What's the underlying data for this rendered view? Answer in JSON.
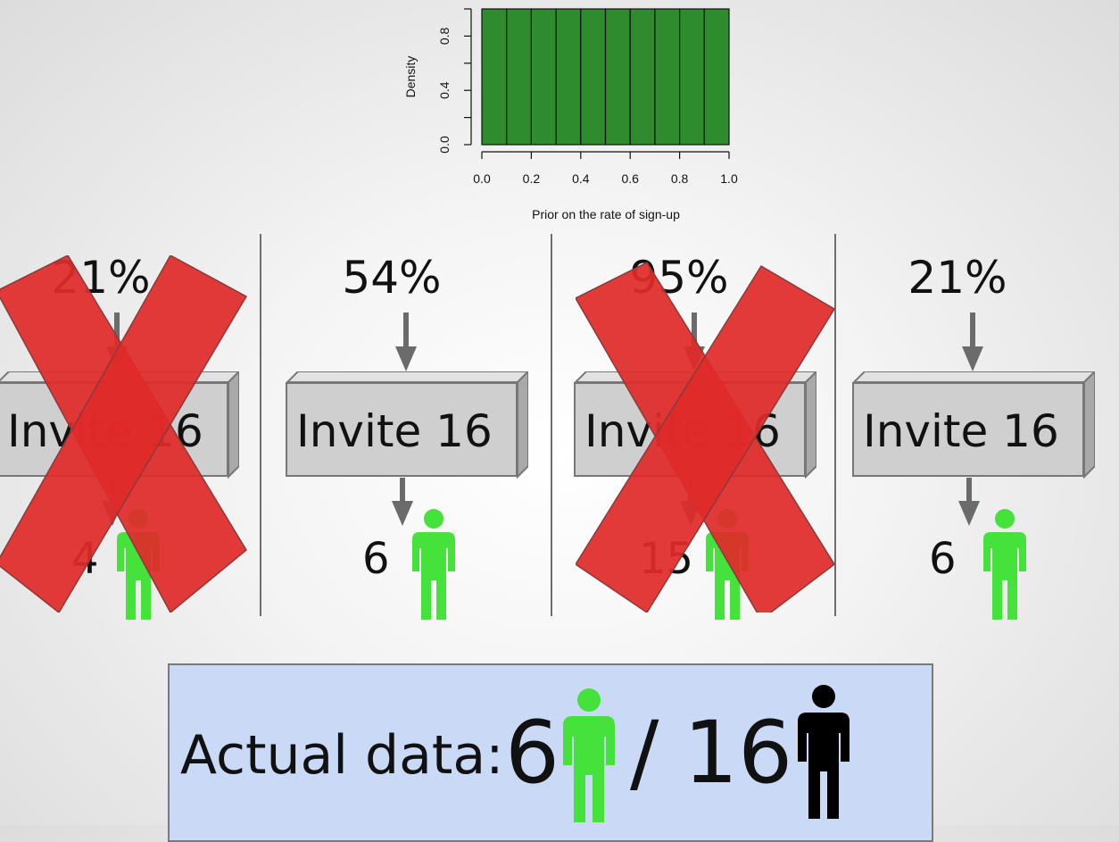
{
  "chart_data": {
    "type": "bar",
    "title": "",
    "xlabel": "Prior on the rate of sign-up",
    "ylabel": "Density",
    "x_bin_edges": [
      0.0,
      0.1,
      0.2,
      0.3,
      0.4,
      0.5,
      0.6,
      0.7,
      0.8,
      0.9,
      1.0
    ],
    "values": [
      1,
      1,
      1,
      1,
      1,
      1,
      1,
      1,
      1,
      1
    ],
    "xlim": [
      0.0,
      1.0
    ],
    "ylim": [
      0.0,
      1.0
    ],
    "xticks": [
      "0.0",
      "0.2",
      "0.4",
      "0.6",
      "0.8",
      "1.0"
    ],
    "yticks": [
      "0.0",
      "0.4",
      "0.8"
    ],
    "ytick_values": [
      0.0,
      0.4,
      0.8
    ],
    "xtick_values": [
      0.0,
      0.2,
      0.4,
      0.6,
      0.8,
      1.0
    ],
    "bar_color": "#2e8b2e"
  },
  "simulations": [
    {
      "rate": "21%",
      "action": "Invite 16",
      "signups": "4",
      "rejected": true
    },
    {
      "rate": "54%",
      "action": "Invite 16",
      "signups": "6",
      "rejected": false
    },
    {
      "rate": "95%",
      "action": "Invite 16",
      "signups": "15",
      "rejected": true
    },
    {
      "rate": "21%",
      "action": "Invite 16",
      "signups": "6",
      "rejected": false
    }
  ],
  "actual_data": {
    "label": "Actual data:",
    "signups": "6",
    "separator": "/",
    "total": "16"
  },
  "colors": {
    "signup_person": "#44e23a",
    "invitee_person": "#000000",
    "reject_x": "#e02a2a",
    "arrow": "#6b6b6b"
  },
  "icons": {
    "arrow": "arrow-down-icon",
    "person": "person-icon",
    "reject": "x-mark-icon"
  }
}
